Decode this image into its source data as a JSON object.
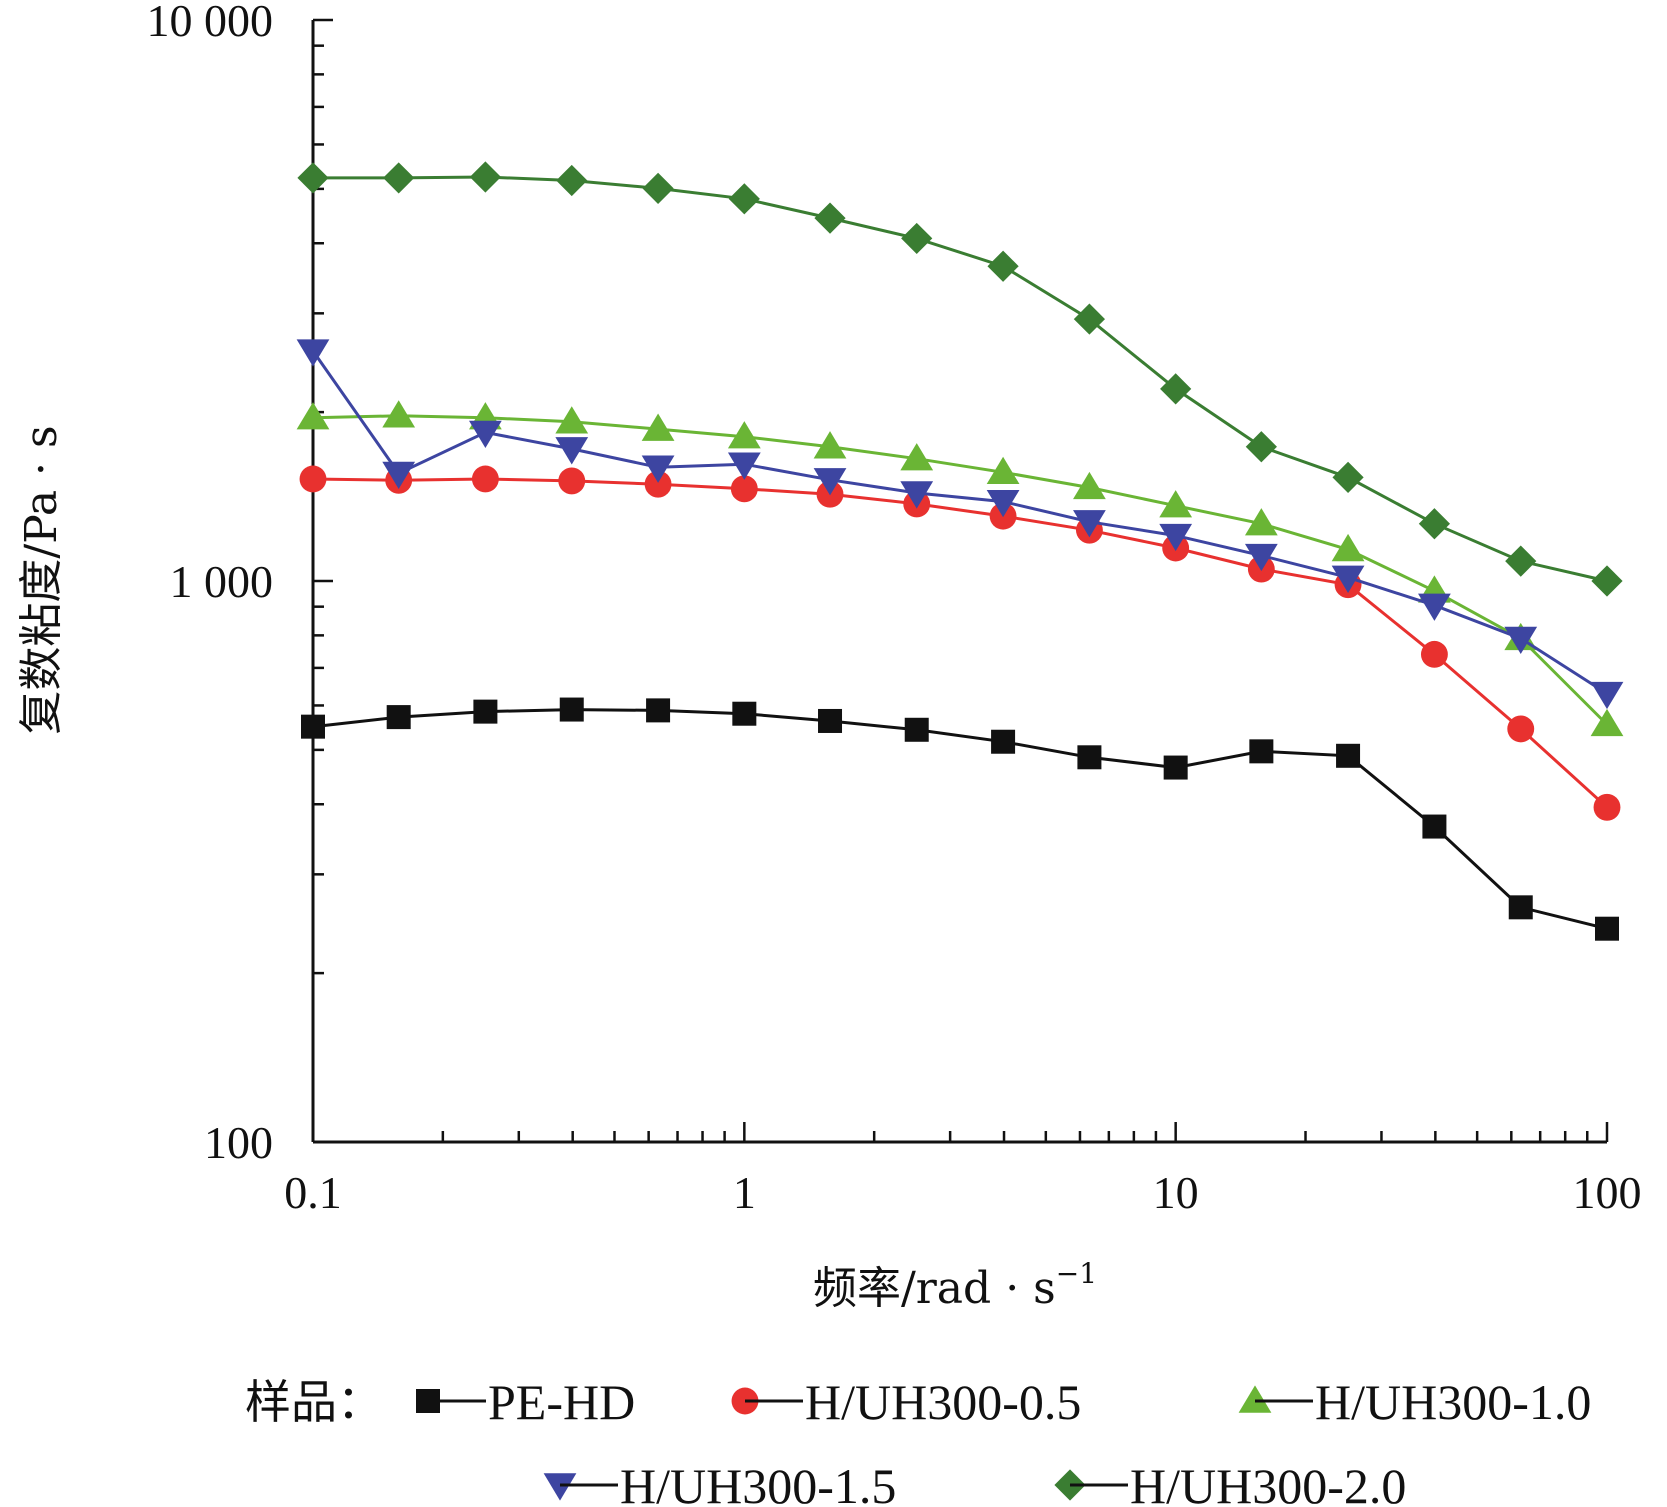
{
  "chart_data": {
    "type": "line",
    "xscale": "log",
    "yscale": "log",
    "xlim": [
      0.1,
      100
    ],
    "ylim": [
      100,
      10000
    ],
    "xticks": [
      0.1,
      1,
      10,
      100
    ],
    "yticks": [
      100,
      1000,
      10000
    ],
    "xtick_labels": [
      "0.1",
      "1",
      "10",
      "100"
    ],
    "ytick_labels": [
      "100",
      "1 000",
      "10 000"
    ],
    "xlabel": "频率/rad · s",
    "xlabel_sup": "−1",
    "ylabel": "复数粘度/Pa · s",
    "legend_prefix": "样品：",
    "legend_position": "bottom",
    "grid": false,
    "x": [
      0.1,
      0.158,
      0.251,
      0.398,
      0.631,
      1.0,
      1.58,
      2.51,
      3.98,
      6.31,
      10.0,
      15.8,
      25.1,
      39.8,
      63.1,
      100.0
    ],
    "series": [
      {
        "name": "PE-HD",
        "color": "#111111",
        "marker": "square",
        "values": [
          550,
          572,
          585,
          590,
          588,
          580,
          563,
          543,
          517,
          485,
          465,
          497,
          488,
          365,
          262,
          240
        ]
      },
      {
        "name": "H/UH300-0.5",
        "color": "#e8312f",
        "marker": "circle",
        "values": [
          1520,
          1512,
          1520,
          1508,
          1488,
          1460,
          1428,
          1372,
          1305,
          1232,
          1145,
          1050,
          985,
          740,
          545,
          395
        ]
      },
      {
        "name": "H/UH300-1.0",
        "color": "#6ab535",
        "marker": "triangle-up",
        "values": [
          1955,
          1970,
          1955,
          1922,
          1865,
          1808,
          1735,
          1652,
          1562,
          1468,
          1362,
          1265,
          1138,
          960,
          790,
          555
        ]
      },
      {
        "name": "H/UH300-1.5",
        "color": "#3d45a1",
        "marker": "triangle-down",
        "values": [
          2570,
          1555,
          1840,
          1720,
          1595,
          1615,
          1515,
          1435,
          1385,
          1275,
          1205,
          1110,
          1015,
          905,
          790,
          630
        ]
      },
      {
        "name": "H/UH300-2.0",
        "color": "#3a7d32",
        "marker": "diamond",
        "values": [
          5230,
          5230,
          5250,
          5175,
          5010,
          4800,
          4435,
          4080,
          3640,
          2930,
          2200,
          1735,
          1530,
          1265,
          1085,
          1000
        ]
      }
    ]
  }
}
